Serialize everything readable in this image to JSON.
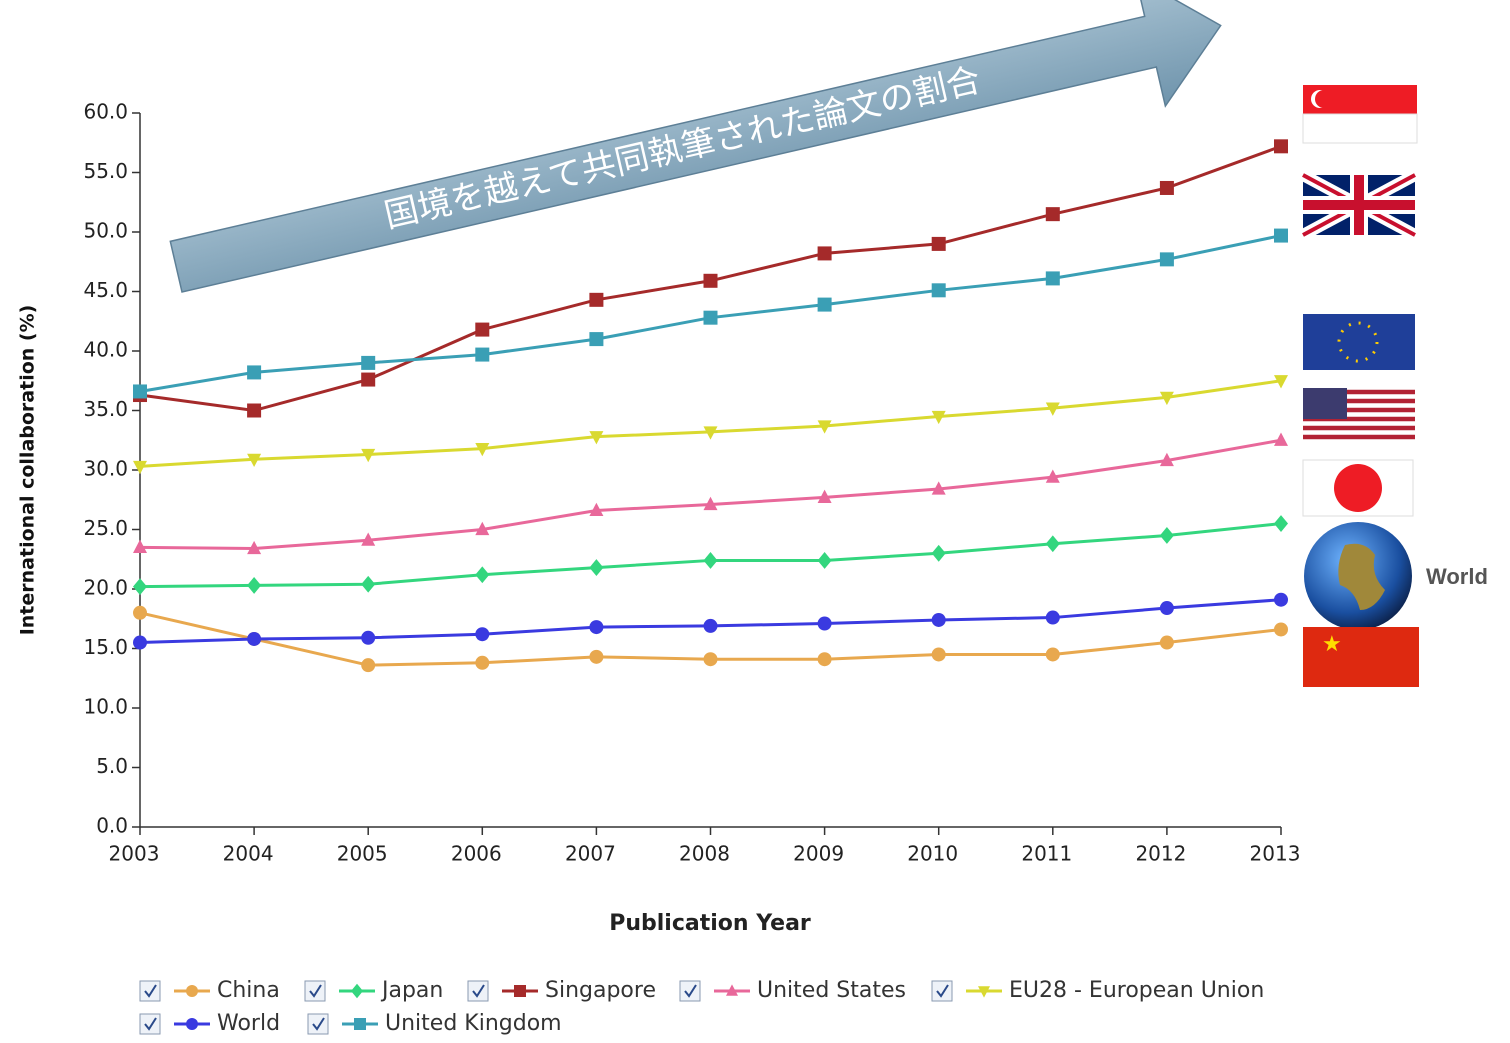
{
  "chart_data": {
    "type": "line",
    "annotation": "国境を越えて共同執筆された論文の割合",
    "x_label": "Publication Year",
    "y_label": "International collaboration (%)",
    "flag_label": "World",
    "x": [
      2003,
      2004,
      2005,
      2006,
      2007,
      2008,
      2009,
      2010,
      2011,
      2012,
      2013
    ],
    "xlim": [
      2003,
      2013
    ],
    "xticks": [
      2003,
      2004,
      2005,
      2006,
      2007,
      2008,
      2009,
      2010,
      2011,
      2012,
      2013
    ],
    "ylim": [
      0,
      60
    ],
    "yticks": [
      {
        "value": 0,
        "label": "0.0"
      },
      {
        "value": 5,
        "label": "5.0"
      },
      {
        "value": 10,
        "label": "10.0"
      },
      {
        "value": 15,
        "label": "15.0"
      },
      {
        "value": 20,
        "label": "20.0"
      },
      {
        "value": 25,
        "label": "25.0"
      },
      {
        "value": 30,
        "label": "30.0"
      },
      {
        "value": 35,
        "label": "35.0"
      },
      {
        "value": 40,
        "label": "40.0"
      },
      {
        "value": 45,
        "label": "45.0"
      },
      {
        "value": 50,
        "label": "50.0"
      },
      {
        "value": 55,
        "label": "55.0"
      },
      {
        "value": 60,
        "label": "60.0"
      }
    ],
    "legend": "bottom",
    "series": [
      {
        "name": "China",
        "color": "#e8a84e",
        "marker": "circle",
        "values": [
          18.0,
          15.8,
          13.6,
          13.8,
          14.3,
          14.1,
          14.1,
          14.5,
          14.5,
          15.5,
          16.6
        ]
      },
      {
        "name": "Japan",
        "color": "#33d67e",
        "marker": "diamond",
        "values": [
          20.2,
          20.3,
          20.4,
          21.2,
          21.8,
          22.4,
          22.4,
          23.0,
          23.8,
          24.5,
          25.5
        ]
      },
      {
        "name": "Singapore",
        "color": "#a52a2a",
        "marker": "square",
        "values": [
          36.3,
          35.0,
          37.6,
          41.8,
          44.3,
          45.9,
          48.2,
          49.0,
          51.5,
          53.7,
          57.2
        ]
      },
      {
        "name": "United States",
        "color": "#e8689a",
        "marker": "triangle",
        "values": [
          23.5,
          23.4,
          24.1,
          25.0,
          26.6,
          27.1,
          27.7,
          28.4,
          29.4,
          30.8,
          32.5
        ]
      },
      {
        "name": "EU28 - European Union",
        "color": "#d9d930",
        "marker": "triangle-down",
        "values": [
          30.3,
          30.9,
          31.3,
          31.8,
          32.8,
          33.2,
          33.7,
          34.5,
          35.2,
          36.1,
          37.5
        ]
      },
      {
        "name": "World",
        "color": "#3a3ae0",
        "marker": "circle",
        "values": [
          15.5,
          15.8,
          15.9,
          16.2,
          16.8,
          16.9,
          17.1,
          17.4,
          17.6,
          18.4,
          19.1
        ]
      },
      {
        "name": "United Kingdom",
        "color": "#3a9fb5",
        "marker": "square",
        "values": [
          36.6,
          38.2,
          39.0,
          39.7,
          41.0,
          42.8,
          43.9,
          45.1,
          46.1,
          47.7,
          49.7
        ]
      }
    ]
  }
}
